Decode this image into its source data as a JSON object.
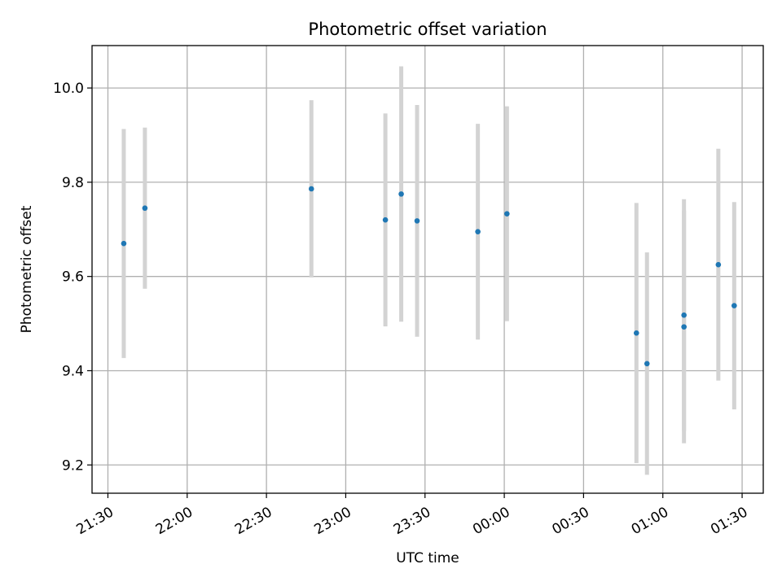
{
  "chart_data": {
    "type": "scatter",
    "title": "Photometric offset variation",
    "xlabel": "UTC time",
    "ylabel": "Photometric offset",
    "grid": true,
    "x_tick_labels": [
      "21:30",
      "22:00",
      "22:30",
      "23:00",
      "23:30",
      "00:00",
      "00:30",
      "01:00",
      "01:30"
    ],
    "y_tick_labels": [
      "9.2",
      "9.4",
      "9.6",
      "9.8",
      "10.0"
    ],
    "y_ticks": [
      9.2,
      9.4,
      9.6,
      9.8,
      10.0
    ],
    "xlim": [
      "21:24",
      "01:38"
    ],
    "ylim": [
      9.14,
      10.09
    ],
    "marker_color": "#1f77b4",
    "errorbar_color": "#d3d3d3",
    "series": [
      {
        "points": [
          {
            "x": "21:36",
            "y": 9.67,
            "yerr": 0.243
          },
          {
            "x": "21:44",
            "y": 9.745,
            "yerr": 0.171
          },
          {
            "x": "22:47",
            "y": 9.786,
            "yerr": 0.188
          },
          {
            "x": "23:15",
            "y": 9.72,
            "yerr": 0.226
          },
          {
            "x": "23:21",
            "y": 9.775,
            "yerr": 0.271
          },
          {
            "x": "23:27",
            "y": 9.718,
            "yerr": 0.246
          },
          {
            "x": "23:50",
            "y": 9.695,
            "yerr": 0.229
          },
          {
            "x": "00:01",
            "y": 9.733,
            "yerr": 0.228
          },
          {
            "x": "00:50",
            "y": 9.48,
            "yerr": 0.276
          },
          {
            "x": "00:54",
            "y": 9.415,
            "yerr": 0.236
          },
          {
            "x": "01:08",
            "y": 9.518,
            "yerr": 0.246
          },
          {
            "x": "01:08",
            "y": 9.493,
            "yerr": 0.247
          },
          {
            "x": "01:21",
            "y": 9.625,
            "yerr": 0.246
          },
          {
            "x": "01:27",
            "y": 9.538,
            "yerr": 0.22
          }
        ]
      }
    ]
  }
}
